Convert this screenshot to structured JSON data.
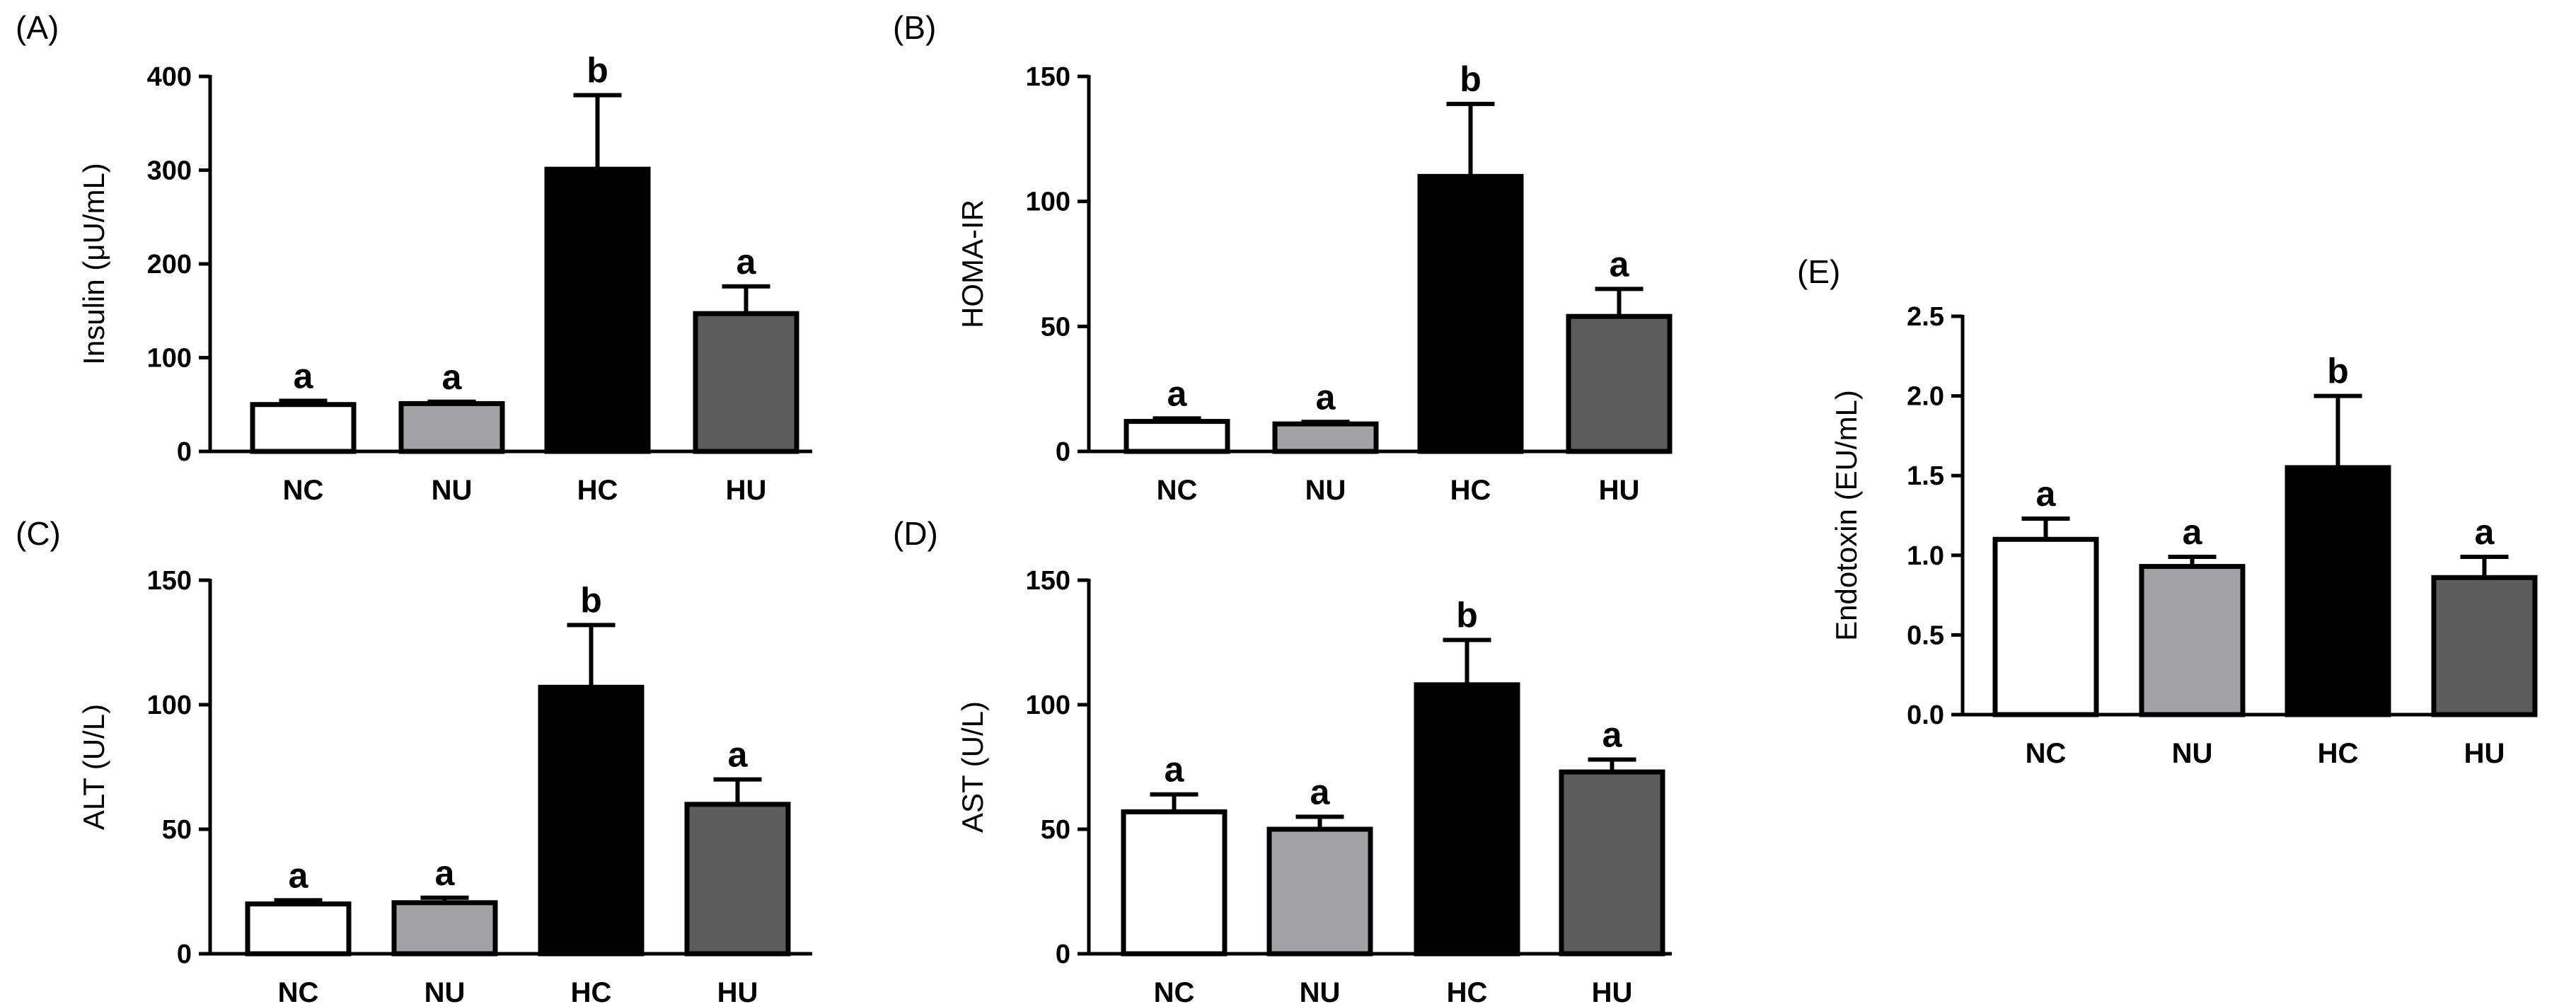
{
  "chart_data": [
    {
      "type": "bar",
      "panel_label": "(A)",
      "categories": [
        "NC",
        "NU",
        "HC",
        "HU"
      ],
      "values": [
        50,
        51,
        301,
        147
      ],
      "errors": [
        4,
        2,
        79,
        29
      ],
      "significance": [
        "a",
        "a",
        "b",
        "a"
      ],
      "colors": [
        "#ffffff",
        "#a3a3a6",
        "#000000",
        "#5c5c5c"
      ],
      "title": "",
      "xlabel": "",
      "ylabel": "Insulin (μU/mL)",
      "ylim": [
        0,
        400
      ],
      "yticks": [
        0,
        100,
        200,
        300,
        400
      ],
      "ytick_labels": [
        "0",
        "100",
        "200",
        "300",
        "400"
      ]
    },
    {
      "type": "bar",
      "panel_label": "(B)",
      "categories": [
        "NC",
        "NU",
        "HC",
        "HU"
      ],
      "values": [
        12,
        11,
        110,
        54
      ],
      "errors": [
        1.2,
        0.8,
        29,
        11
      ],
      "significance": [
        "a",
        "a",
        "b",
        "a"
      ],
      "colors": [
        "#ffffff",
        "#a3a3a6",
        "#000000",
        "#5c5c5c"
      ],
      "title": "",
      "xlabel": "",
      "ylabel": "HOMA-IR",
      "ylim": [
        0,
        150
      ],
      "yticks": [
        0,
        50,
        100,
        150
      ],
      "ytick_labels": [
        "0",
        "50",
        "100",
        "150"
      ]
    },
    {
      "type": "bar",
      "panel_label": "(C)",
      "categories": [
        "NC",
        "NU",
        "HC",
        "HU"
      ],
      "values": [
        20,
        20.5,
        107,
        60
      ],
      "errors": [
        1.5,
        2,
        25,
        10
      ],
      "significance": [
        "a",
        "a",
        "b",
        "a"
      ],
      "colors": [
        "#ffffff",
        "#a3a3a6",
        "#000000",
        "#5c5c5c"
      ],
      "title": "",
      "xlabel": "",
      "ylabel": "ALT (U/L)",
      "ylim": [
        0,
        150
      ],
      "yticks": [
        0,
        50,
        100,
        150
      ],
      "ytick_labels": [
        "0",
        "50",
        "100",
        "150"
      ]
    },
    {
      "type": "bar",
      "panel_label": "(D)",
      "categories": [
        "NC",
        "NU",
        "HC",
        "HU"
      ],
      "values": [
        57,
        50,
        108,
        73
      ],
      "errors": [
        7,
        5,
        18,
        5
      ],
      "significance": [
        "a",
        "a",
        "b",
        "a"
      ],
      "colors": [
        "#ffffff",
        "#a3a3a6",
        "#000000",
        "#5c5c5c"
      ],
      "title": "",
      "xlabel": "",
      "ylabel": "AST (U/L)",
      "ylim": [
        0,
        150
      ],
      "yticks": [
        0,
        50,
        100,
        150
      ],
      "ytick_labels": [
        "0",
        "50",
        "100",
        "150"
      ]
    },
    {
      "type": "bar",
      "panel_label": "(E)",
      "categories": [
        "NC",
        "NU",
        "HC",
        "HU"
      ],
      "values": [
        1.1,
        0.93,
        1.55,
        0.86
      ],
      "errors": [
        0.13,
        0.06,
        0.45,
        0.13
      ],
      "significance": [
        "a",
        "a",
        "b",
        "a"
      ],
      "colors": [
        "#ffffff",
        "#a3a3a6",
        "#000000",
        "#5c5c5c"
      ],
      "title": "",
      "xlabel": "",
      "ylabel": "Endotoxin (EU/mL)",
      "ylim": [
        0,
        2.5
      ],
      "yticks": [
        0,
        0.5,
        1.0,
        1.5,
        2.0,
        2.5
      ],
      "ytick_labels": [
        "0.0",
        "0.5",
        "1.0",
        "1.5",
        "2.0",
        "2.5"
      ]
    }
  ]
}
